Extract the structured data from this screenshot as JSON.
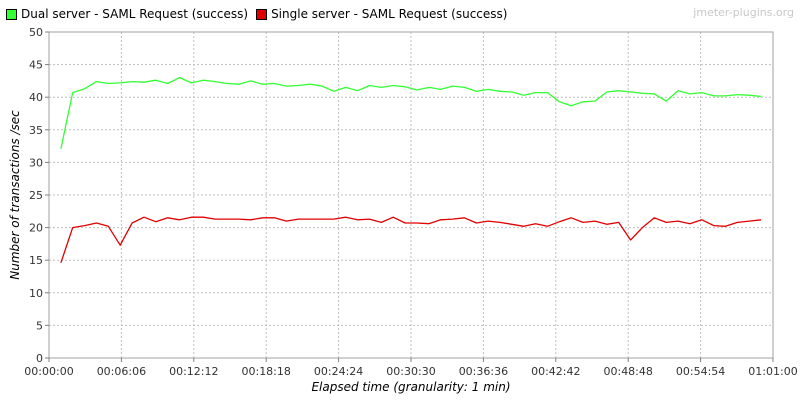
{
  "watermark": "jmeter-plugins.org",
  "colors": {
    "series1": "#33ff33",
    "series2": "#e00000",
    "grid": "#c0c0c0"
  },
  "chart_data": {
    "type": "line",
    "title": "",
    "xlabel": "Elapsed time (granularity: 1 min)",
    "ylabel": "Number of transactions /sec",
    "xlim": [
      "00:00:00",
      "01:01:00"
    ],
    "ylim": [
      0,
      50
    ],
    "yticks": [
      0,
      5,
      10,
      15,
      20,
      25,
      30,
      35,
      40,
      45,
      50
    ],
    "xticks": [
      "00:00:00",
      "00:06:06",
      "00:12:12",
      "00:18:18",
      "00:24:24",
      "00:30:30",
      "00:36:36",
      "00:42:42",
      "00:48:48",
      "00:54:54",
      "01:01:00"
    ],
    "grid": true,
    "legend": "top-left",
    "series": [
      {
        "name": "Dual server - SAML Request (success)",
        "x": [
          "00:01:00",
          "00:02:00",
          "00:03:00",
          "00:04:00",
          "00:05:00",
          "00:06:00",
          "00:07:00",
          "00:08:00",
          "00:09:00",
          "00:10:00",
          "00:11:00",
          "00:12:00",
          "00:13:00",
          "00:14:00",
          "00:15:00",
          "00:16:00",
          "00:17:00",
          "00:18:00",
          "00:19:00",
          "00:20:00",
          "00:21:00",
          "00:22:00",
          "00:23:00",
          "00:24:00",
          "00:25:00",
          "00:26:00",
          "00:27:00",
          "00:28:00",
          "00:29:00",
          "00:30:00",
          "00:31:00",
          "00:32:00",
          "00:33:00",
          "00:34:00",
          "00:35:00",
          "00:36:00",
          "00:37:00",
          "00:38:00",
          "00:39:00",
          "00:40:00",
          "00:41:00",
          "00:42:00",
          "00:43:00",
          "00:44:00",
          "00:45:00",
          "00:46:00",
          "00:47:00",
          "00:48:00",
          "00:49:00",
          "00:50:00",
          "00:51:00",
          "00:52:00",
          "00:53:00",
          "00:54:00",
          "00:55:00",
          "00:56:00",
          "00:57:00",
          "00:58:00",
          "00:59:00",
          "01:00:00"
        ],
        "values": [
          32.1,
          40.7,
          41.3,
          42.4,
          42.1,
          42.2,
          42.4,
          42.3,
          42.6,
          42.1,
          43.0,
          42.2,
          42.6,
          42.4,
          42.1,
          42.0,
          42.5,
          42.0,
          42.1,
          41.7,
          41.8,
          42.0,
          41.7,
          40.9,
          41.5,
          41.0,
          41.8,
          41.5,
          41.8,
          41.6,
          41.1,
          41.5,
          41.2,
          41.7,
          41.5,
          40.9,
          41.2,
          40.9,
          40.8,
          40.3,
          40.7,
          40.7,
          39.3,
          38.7,
          39.3,
          39.4,
          40.8,
          41.0,
          40.8,
          40.6,
          40.5,
          39.4,
          41.0,
          40.5,
          40.7,
          40.2,
          40.2,
          40.4,
          40.3,
          40.1
        ]
      },
      {
        "name": "Single server - SAML Request (success)",
        "x": [
          "00:01:00",
          "00:02:00",
          "00:03:00",
          "00:04:00",
          "00:05:00",
          "00:06:00",
          "00:07:00",
          "00:08:00",
          "00:09:00",
          "00:10:00",
          "00:11:00",
          "00:12:00",
          "00:13:00",
          "00:14:00",
          "00:15:00",
          "00:16:00",
          "00:17:00",
          "00:18:00",
          "00:19:00",
          "00:20:00",
          "00:21:00",
          "00:22:00",
          "00:23:00",
          "00:24:00",
          "00:25:00",
          "00:26:00",
          "00:27:00",
          "00:28:00",
          "00:29:00",
          "00:30:00",
          "00:31:00",
          "00:32:00",
          "00:33:00",
          "00:34:00",
          "00:35:00",
          "00:36:00",
          "00:37:00",
          "00:38:00",
          "00:39:00",
          "00:40:00",
          "00:41:00",
          "00:42:00",
          "00:43:00",
          "00:44:00",
          "00:45:00",
          "00:46:00",
          "00:47:00",
          "00:48:00",
          "00:49:00",
          "00:50:00",
          "00:51:00",
          "00:52:00",
          "00:53:00",
          "00:54:00",
          "00:55:00",
          "00:56:00",
          "00:57:00",
          "00:58:00",
          "00:59:00",
          "01:00:00"
        ],
        "values": [
          14.6,
          20.0,
          20.3,
          20.7,
          20.2,
          17.3,
          20.7,
          21.6,
          20.9,
          21.5,
          21.2,
          21.6,
          21.6,
          21.3,
          21.3,
          21.3,
          21.2,
          21.5,
          21.5,
          21.0,
          21.3,
          21.3,
          21.3,
          21.3,
          21.6,
          21.2,
          21.3,
          20.8,
          21.6,
          20.7,
          20.7,
          20.6,
          21.2,
          21.3,
          21.5,
          20.7,
          21.0,
          20.8,
          20.5,
          20.2,
          20.6,
          20.2,
          20.9,
          21.5,
          20.8,
          21.0,
          20.5,
          20.8,
          18.1,
          20.0,
          21.5,
          20.8,
          21.0,
          20.6,
          21.2,
          20.3,
          20.2,
          20.8,
          21.0,
          21.2
        ]
      }
    ]
  }
}
